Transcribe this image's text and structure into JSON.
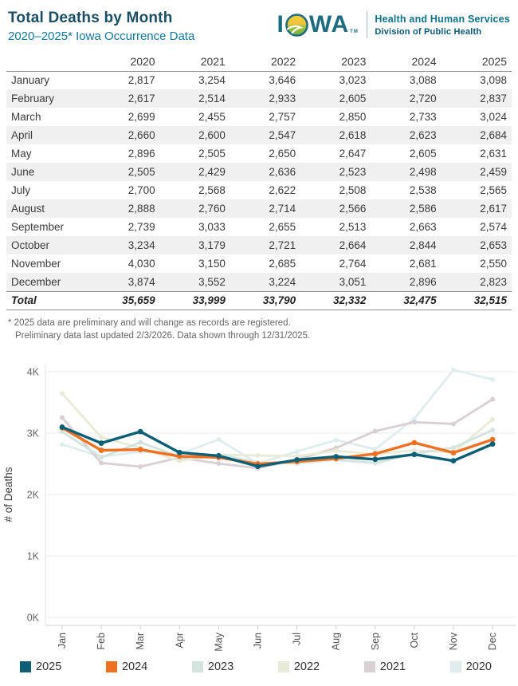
{
  "header": {
    "title": "Total Deaths by Month",
    "subtitle": "2020–2025* Iowa Occurrence Data",
    "logo": {
      "word_i": "I",
      "word_wa": "WA",
      "tm": "TM",
      "org_line1": "Health and Human Services",
      "org_line2": "Division of Public Health"
    }
  },
  "table": {
    "columns": [
      "2020",
      "2021",
      "2022",
      "2023",
      "2024",
      "2025"
    ],
    "rows": [
      {
        "label": "January",
        "values": [
          "2,817",
          "3,254",
          "3,646",
          "3,023",
          "3,088",
          "3,098"
        ]
      },
      {
        "label": "February",
        "values": [
          "2,617",
          "2,514",
          "2,933",
          "2,605",
          "2,720",
          "2,837"
        ]
      },
      {
        "label": "March",
        "values": [
          "2,699",
          "2,455",
          "2,757",
          "2,850",
          "2,733",
          "3,024"
        ]
      },
      {
        "label": "April",
        "values": [
          "2,660",
          "2,600",
          "2,547",
          "2,618",
          "2,623",
          "2,684"
        ]
      },
      {
        "label": "May",
        "values": [
          "2,896",
          "2,505",
          "2,650",
          "2,647",
          "2,605",
          "2,631"
        ]
      },
      {
        "label": "June",
        "values": [
          "2,505",
          "2,429",
          "2,636",
          "2,523",
          "2,498",
          "2,459"
        ]
      },
      {
        "label": "July",
        "values": [
          "2,700",
          "2,568",
          "2,622",
          "2,508",
          "2,538",
          "2,565"
        ]
      },
      {
        "label": "August",
        "values": [
          "2,888",
          "2,760",
          "2,714",
          "2,566",
          "2,586",
          "2,617"
        ]
      },
      {
        "label": "September",
        "values": [
          "2,739",
          "3,033",
          "2,655",
          "2,513",
          "2,663",
          "2,574"
        ]
      },
      {
        "label": "October",
        "values": [
          "3,234",
          "3,179",
          "2,721",
          "2,664",
          "2,844",
          "2,653"
        ]
      },
      {
        "label": "November",
        "values": [
          "4,030",
          "3,150",
          "2,685",
          "2,764",
          "2,681",
          "2,550"
        ]
      },
      {
        "label": "December",
        "values": [
          "3,874",
          "3,552",
          "3,224",
          "3,051",
          "2,896",
          "2,823"
        ]
      }
    ],
    "total": {
      "label": "Total",
      "values": [
        "35,659",
        "33,999",
        "33,790",
        "32,332",
        "32,475",
        "32,515"
      ]
    }
  },
  "footnotes": [
    "* 2025 data are preliminary and will change as records are registered.",
    "Preliminary data last updated 2/3/2026. Data shown through 12/31/2025."
  ],
  "chart_data": {
    "type": "line",
    "x": [
      "Jan",
      "Feb",
      "Mar",
      "Apr",
      "May",
      "Jun",
      "Jul",
      "Aug",
      "Sep",
      "Oct",
      "Nov",
      "Dec"
    ],
    "series": [
      {
        "name": "2020",
        "color": "#e0edee",
        "highlight": false,
        "values": [
          2817,
          2617,
          2699,
          2660,
          2896,
          2505,
          2700,
          2888,
          2739,
          3234,
          4030,
          3874
        ]
      },
      {
        "name": "2021",
        "color": "#d9cfd5",
        "highlight": false,
        "values": [
          3254,
          2514,
          2455,
          2600,
          2505,
          2429,
          2568,
          2760,
          3033,
          3179,
          3150,
          3552
        ]
      },
      {
        "name": "2022",
        "color": "#eaebd6",
        "highlight": false,
        "values": [
          3646,
          2933,
          2757,
          2547,
          2650,
          2636,
          2622,
          2714,
          2655,
          2721,
          2685,
          3224
        ]
      },
      {
        "name": "2023",
        "color": "#d3e4de",
        "highlight": false,
        "values": [
          3023,
          2605,
          2850,
          2618,
          2647,
          2523,
          2508,
          2566,
          2513,
          2664,
          2764,
          3051
        ]
      },
      {
        "name": "2024",
        "color": "#f07022",
        "highlight": true,
        "values": [
          3088,
          2720,
          2733,
          2623,
          2605,
          2498,
          2538,
          2586,
          2663,
          2844,
          2681,
          2896
        ]
      },
      {
        "name": "2025",
        "color": "#0d5f75",
        "highlight": true,
        "values": [
          3098,
          2837,
          3024,
          2684,
          2631,
          2459,
          2565,
          2617,
          2574,
          2653,
          2550,
          2823
        ]
      }
    ],
    "ylabel": "# of Deaths",
    "yticks": [
      "0K",
      "1K",
      "2K",
      "3K",
      "4K"
    ],
    "ylim": [
      0,
      4200
    ],
    "grid": true,
    "legend_position": "bottom",
    "legend_order": [
      "2025",
      "2024",
      "2023",
      "2022",
      "2021",
      "2020"
    ]
  }
}
